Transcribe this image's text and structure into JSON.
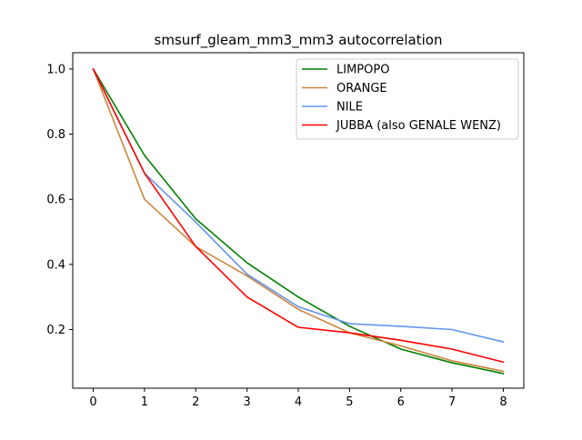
{
  "chart_data": {
    "type": "line",
    "title": "smsurf_gleam_mm3_mm3 autocorrelation",
    "xlabel": "",
    "ylabel": "",
    "x": [
      0,
      1,
      2,
      3,
      4,
      5,
      6,
      7,
      8
    ],
    "xlim": [
      -0.4,
      8.4
    ],
    "ylim": [
      0.02,
      1.05
    ],
    "xticks": [
      "0",
      "1",
      "2",
      "3",
      "4",
      "5",
      "6",
      "7",
      "8"
    ],
    "yticks": [
      "0.2",
      "0.4",
      "0.6",
      "0.8",
      "1.0"
    ],
    "grid": false,
    "legend_position": "top-right",
    "series": [
      {
        "name": "LIMPOPO",
        "color": "#008000",
        "values": [
          1.0,
          0.735,
          0.54,
          0.405,
          0.3,
          0.21,
          0.14,
          0.098,
          0.065
        ]
      },
      {
        "name": "ORANGE",
        "color": "#cd853f",
        "values": [
          1.0,
          0.6,
          0.455,
          0.365,
          0.262,
          0.19,
          0.15,
          0.104,
          0.072
        ]
      },
      {
        "name": "NILE",
        "color": "#6495ed",
        "values": [
          1.0,
          0.68,
          0.53,
          0.37,
          0.27,
          0.218,
          0.21,
          0.2,
          0.162
        ]
      },
      {
        "name": "JUBBA (also GENALE WENZ)",
        "color": "#ff0000",
        "values": [
          1.0,
          0.68,
          0.455,
          0.3,
          0.207,
          0.19,
          0.167,
          0.14,
          0.1
        ]
      }
    ]
  }
}
